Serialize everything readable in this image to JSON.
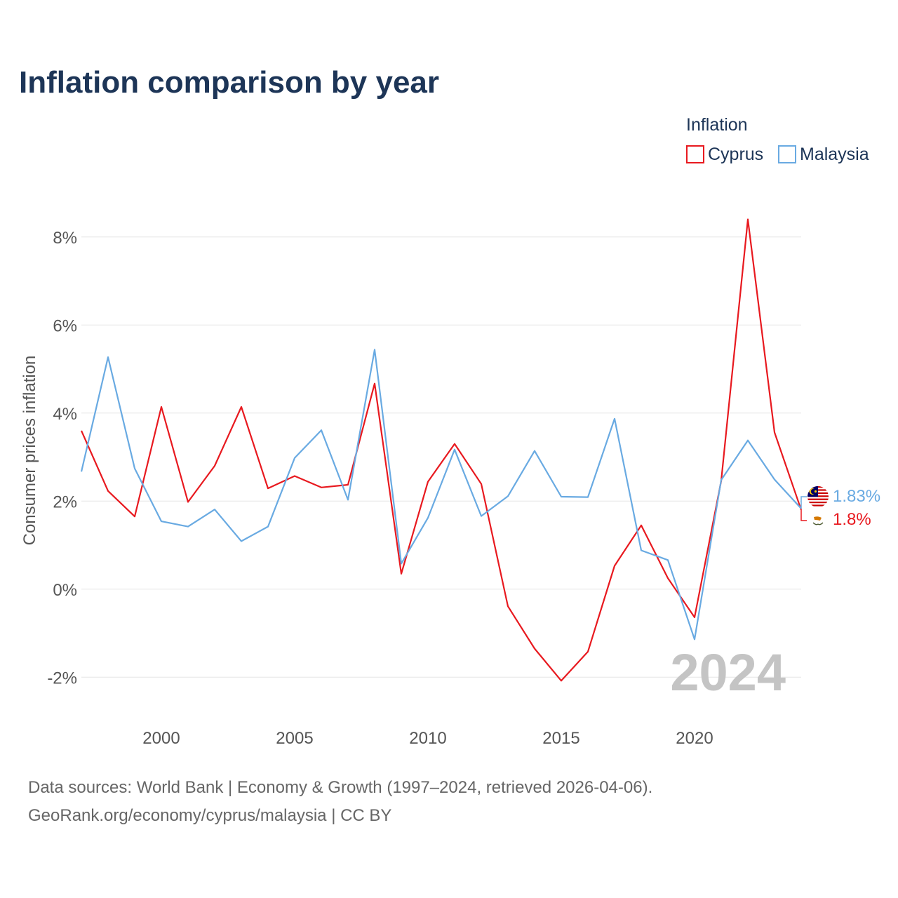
{
  "colors": {
    "cyprus": "#e8191f",
    "malaysia": "#69aae2",
    "title": "#1d3557",
    "grid": "#e6e6e6",
    "tick": "#555555",
    "watermark": "#c4c4c4"
  },
  "chart_data": {
    "type": "line",
    "title": "Inflation comparison by year",
    "ylabel": "Consumer prices inflation",
    "xlabel": "",
    "x": [
      1997,
      1998,
      1999,
      2000,
      2001,
      2002,
      2003,
      2004,
      2005,
      2006,
      2007,
      2008,
      2009,
      2010,
      2011,
      2012,
      2013,
      2014,
      2015,
      2016,
      2017,
      2018,
      2019,
      2020,
      2021,
      2022,
      2023,
      2024
    ],
    "xlim": [
      1997,
      2024
    ],
    "ylim": [
      -3.0,
      9.0
    ],
    "x_ticks": [
      2000,
      2005,
      2010,
      2015,
      2020
    ],
    "y_ticks": [
      -2,
      0,
      2,
      4,
      6,
      8
    ],
    "y_tick_labels": [
      "-2%",
      "0%",
      "2%",
      "4%",
      "6%",
      "8%"
    ],
    "legend": {
      "title": "Inflation",
      "position": "top-right"
    },
    "watermark_year": "2024",
    "series": [
      {
        "key": "cyprus",
        "name": "Cyprus",
        "end_label": "1.8%",
        "values": [
          3.6,
          2.23,
          1.65,
          4.14,
          1.98,
          2.8,
          4.14,
          2.29,
          2.57,
          2.31,
          2.37,
          4.67,
          0.35,
          2.44,
          3.3,
          2.39,
          -0.39,
          -1.35,
          -2.08,
          -1.42,
          0.53,
          1.45,
          0.25,
          -0.64,
          2.46,
          8.4,
          3.56,
          1.8
        ]
      },
      {
        "key": "malaysia",
        "name": "Malaysia",
        "end_label": "1.83%",
        "values": [
          2.67,
          5.27,
          2.74,
          1.54,
          1.42,
          1.81,
          1.09,
          1.42,
          2.98,
          3.61,
          2.03,
          5.44,
          0.58,
          1.62,
          3.17,
          1.66,
          2.11,
          3.14,
          2.1,
          2.09,
          3.87,
          0.88,
          0.66,
          -1.14,
          2.48,
          3.38,
          2.49,
          1.83
        ]
      }
    ]
  },
  "footer": {
    "line1": "Data sources: World Bank | Economy & Growth (1997–2024, retrieved 2026-04-06).",
    "line2": "GeoRank.org/economy/cyprus/malaysia | CC BY"
  }
}
